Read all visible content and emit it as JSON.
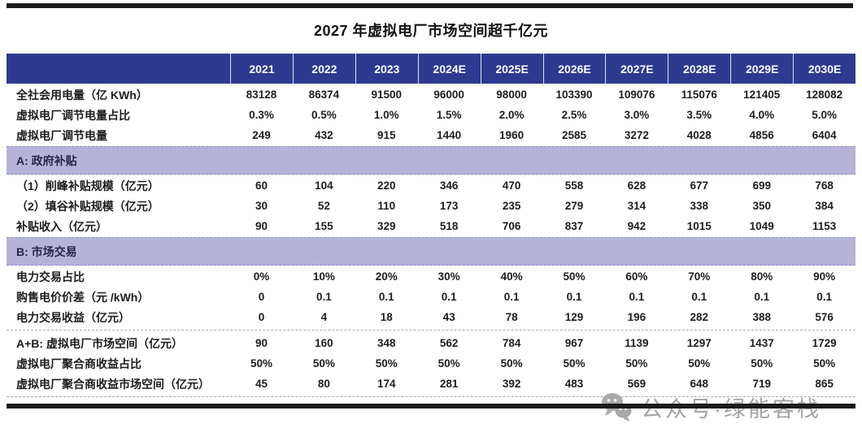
{
  "title": "2027 年虚拟电厂市场空间超千亿元",
  "watermark": {
    "icon": "wechat-icon",
    "text": "公众号·绿能客栈"
  },
  "colors": {
    "header_bg": "#2d3a90",
    "band_bg": "#b5b4d8",
    "rule": "#1b1b1b",
    "watermark_gray": "#a3a3a3"
  },
  "table": {
    "header": [
      "2021",
      "2022",
      "2023",
      "2024E",
      "2025E",
      "2026E",
      "2027E",
      "2028E",
      "2029E",
      "2030E"
    ],
    "blocks": [
      {
        "type": "rows",
        "rows": [
          {
            "label": "全社会用电量（亿 KWh）",
            "values": [
              "83128",
              "86374",
              "91500",
              "96000",
              "98000",
              "103390",
              "109076",
              "115076",
              "121405",
              "128082"
            ]
          },
          {
            "label": "虚拟电厂调节电量占比",
            "values": [
              "0.3%",
              "0.5%",
              "1.0%",
              "1.5%",
              "2.0%",
              "2.5%",
              "3.0%",
              "3.5%",
              "4.0%",
              "5.0%"
            ]
          },
          {
            "label": "虚拟电厂调节电量",
            "values": [
              "249",
              "432",
              "915",
              "1440",
              "1960",
              "2585",
              "3272",
              "4028",
              "4856",
              "6404"
            ]
          }
        ]
      },
      {
        "type": "band",
        "label": "A: 政府补贴"
      },
      {
        "type": "rows",
        "rows": [
          {
            "label": "（1）削峰补贴规模（亿元）",
            "values": [
              "60",
              "104",
              "220",
              "346",
              "470",
              "558",
              "628",
              "677",
              "699",
              "768"
            ]
          },
          {
            "label": "（2）填谷补贴规模（亿元）",
            "values": [
              "30",
              "52",
              "110",
              "173",
              "235",
              "279",
              "314",
              "338",
              "350",
              "384"
            ]
          },
          {
            "label": "补贴收入（亿元）",
            "values": [
              "90",
              "155",
              "329",
              "518",
              "706",
              "837",
              "942",
              "1015",
              "1049",
              "1153"
            ]
          }
        ]
      },
      {
        "type": "band",
        "label": "B: 市场交易"
      },
      {
        "type": "rows",
        "rows": [
          {
            "label": "电力交易占比",
            "values": [
              "0%",
              "10%",
              "20%",
              "30%",
              "40%",
              "50%",
              "60%",
              "70%",
              "80%",
              "90%"
            ]
          },
          {
            "label": "购售电价价差（元 /kWh）",
            "values": [
              "0",
              "0.1",
              "0.1",
              "0.1",
              "0.1",
              "0.1",
              "0.1",
              "0.1",
              "0.1",
              "0.1"
            ]
          },
          {
            "label": "电力交易收益（亿元）",
            "values": [
              "0",
              "4",
              "18",
              "43",
              "78",
              "129",
              "196",
              "282",
              "388",
              "576"
            ]
          }
        ]
      },
      {
        "type": "divider"
      },
      {
        "type": "rows",
        "rows": [
          {
            "label": "A+B: 虚拟电厂市场空间（亿元）",
            "values": [
              "90",
              "160",
              "348",
              "562",
              "784",
              "967",
              "1139",
              "1297",
              "1437",
              "1729"
            ]
          },
          {
            "label": "虚拟电厂聚合商收益占比",
            "values": [
              "50%",
              "50%",
              "50%",
              "50%",
              "50%",
              "50%",
              "50%",
              "50%",
              "50%",
              "50%"
            ]
          },
          {
            "label": "虚拟电厂聚合商收益市场空间（亿元）",
            "values": [
              "45",
              "80",
              "174",
              "281",
              "392",
              "483",
              "569",
              "648",
              "719",
              "865"
            ]
          }
        ]
      },
      {
        "type": "divider"
      }
    ]
  }
}
